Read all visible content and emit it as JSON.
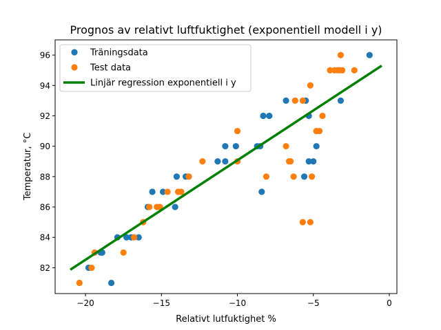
{
  "chart_data": {
    "type": "scatter",
    "title": "Prognos av relativt luftfuktighet (exponentiell modell i y)",
    "xlabel": "Relativt lutfuktighet %",
    "ylabel": "Temperatur, °C",
    "xlim": [
      -22,
      0.5
    ],
    "ylim": [
      80.3,
      97.0
    ],
    "x_ticks": [
      -20,
      -15,
      -10,
      -5,
      0
    ],
    "y_ticks": [
      82,
      84,
      86,
      88,
      90,
      92,
      94,
      96
    ],
    "x_tick_labels": [
      "−20",
      "−15",
      "−10",
      "−5",
      "0"
    ],
    "y_tick_labels": [
      "82",
      "84",
      "86",
      "88",
      "90",
      "92",
      "94",
      "96"
    ],
    "grid": false,
    "legend_position": "top-left",
    "colors": {
      "train": "#1f77b4",
      "test": "#ff7f0e",
      "regression": "#008000"
    },
    "series": [
      {
        "name": "Träningsdata",
        "kind": "points",
        "x": [
          -1.3,
          -3.2,
          -5.5,
          -6.8,
          -5.3,
          -8.3,
          -7.9,
          -8.5,
          -8.7,
          -4.8,
          -5.0,
          -10.1,
          -10.8,
          -11.3,
          -10.8,
          -5.3,
          -5.6,
          -14.0,
          -13.4,
          -13.2,
          -15.6,
          -14.9,
          -15.9,
          -14.1,
          -8.4,
          -17.9,
          -17.3,
          -17.0,
          -16.5,
          -19.0,
          -18.9,
          -19.8,
          -18.3
        ],
        "y": [
          96,
          93,
          93,
          93,
          92,
          92,
          92,
          90,
          90,
          90,
          89,
          90,
          90,
          89,
          89,
          89,
          88,
          88,
          88,
          88,
          87,
          87,
          86,
          86,
          87,
          84,
          84,
          84,
          84,
          83,
          83,
          82,
          81
        ]
      },
      {
        "name": "Test data",
        "kind": "points",
        "x": [
          -3.2,
          -3.9,
          -3.6,
          -3.3,
          -3.1,
          -3.4,
          -2.3,
          -5.2,
          -5.7,
          -6.2,
          -4.4,
          -4.6,
          -4.8,
          -10.0,
          -6.8,
          -6.6,
          -6.5,
          -12.3,
          -10.0,
          -8.1,
          -13.2,
          -6.3,
          -5.1,
          -14.6,
          -13.9,
          -13.7,
          -15.3,
          -15.1,
          -15.8,
          -16.2,
          -16.8,
          -5.7,
          -5.2,
          -17.5,
          -19.4,
          -19.6,
          -20.4
        ],
        "y": [
          96,
          95,
          95,
          95,
          95,
          95,
          95,
          94,
          93,
          93,
          92,
          91,
          91,
          91,
          90,
          89,
          89,
          89,
          89,
          88,
          88,
          88,
          88,
          87,
          87,
          87,
          86,
          86,
          86,
          85,
          84,
          85,
          85,
          83,
          83,
          82,
          81
        ]
      },
      {
        "name": "Linjär regression exponentiell i y",
        "kind": "line",
        "x": [
          -21.0,
          -0.5
        ],
        "y": [
          81.87,
          95.3
        ]
      }
    ]
  }
}
